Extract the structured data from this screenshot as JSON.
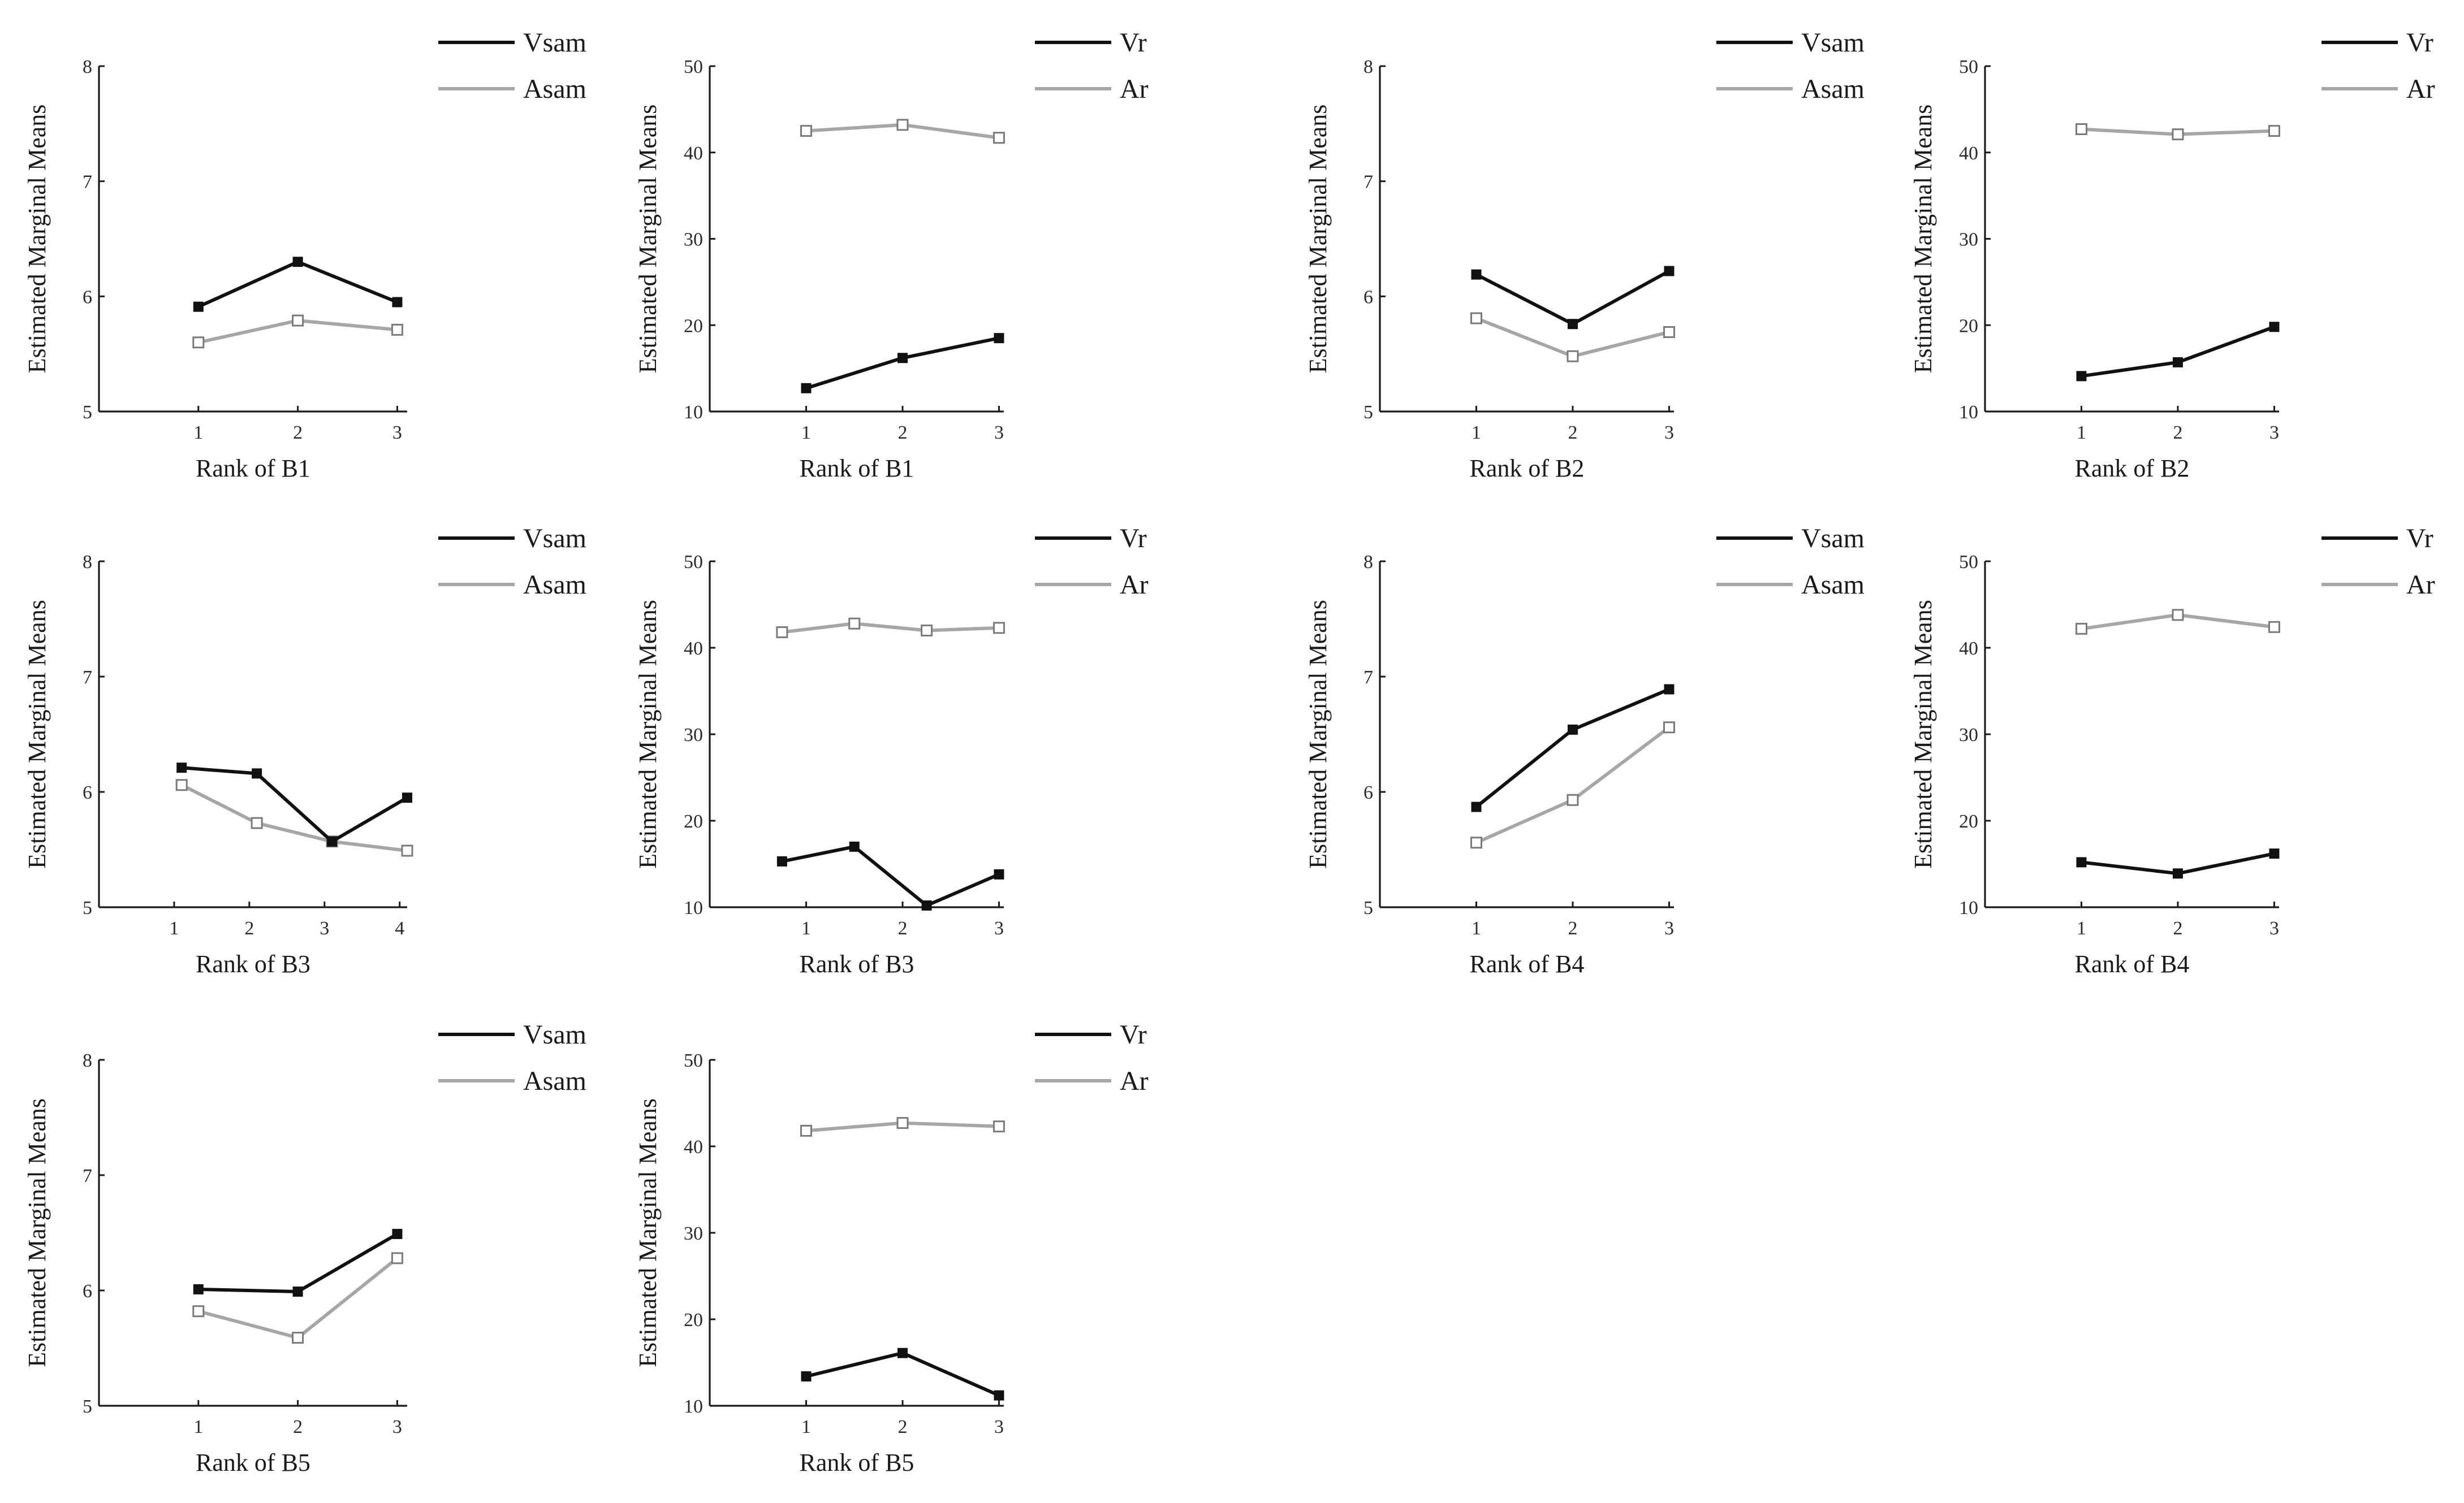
{
  "chart_data": [
    {
      "type": "line",
      "xlabel": "Rank of B1",
      "ylabel": "Estimated Marginal Means",
      "ylim": [
        5,
        8
      ],
      "yticks": [
        5,
        6,
        7,
        8
      ],
      "xticks": [
        1,
        2,
        3
      ],
      "series": [
        {
          "name": "Vsam",
          "x": [
            1,
            2,
            3
          ],
          "values": [
            5.91,
            6.3,
            5.95
          ],
          "color": "#111111",
          "marker": "filled-square"
        },
        {
          "name": "Asam",
          "x": [
            1,
            2,
            3
          ],
          "values": [
            5.6,
            5.79,
            5.71
          ],
          "color": "#a6a6a6",
          "marker": "open-square"
        }
      ],
      "legend": "top-right"
    },
    {
      "type": "line",
      "xlabel": "Rank of B1",
      "ylabel": "Estimated Marginal Means",
      "ylim": [
        10,
        50
      ],
      "yticks": [
        10,
        20,
        30,
        40,
        50
      ],
      "xticks": [
        1,
        2,
        3
      ],
      "series": [
        {
          "name": "Vr",
          "x": [
            1,
            2,
            3
          ],
          "values": [
            12.7,
            16.2,
            18.5
          ],
          "color": "#111111",
          "marker": "filled-square"
        },
        {
          "name": "Ar",
          "x": [
            1,
            2,
            3
          ],
          "values": [
            42.5,
            43.2,
            41.7
          ],
          "color": "#a6a6a6",
          "marker": "open-square"
        }
      ],
      "legend": "top-right"
    },
    {
      "type": "line",
      "xlabel": "Rank of B2",
      "ylabel": "Estimated Marginal Means",
      "ylim": [
        5,
        8
      ],
      "yticks": [
        5,
        6,
        7,
        8
      ],
      "xticks": [
        1,
        2,
        3
      ],
      "series": [
        {
          "name": "Vsam",
          "x": [
            1,
            2,
            3
          ],
          "values": [
            6.19,
            5.76,
            6.22
          ],
          "color": "#111111",
          "marker": "filled-square"
        },
        {
          "name": "Asam",
          "x": [
            1,
            2,
            3
          ],
          "values": [
            5.81,
            5.48,
            5.69
          ],
          "color": "#a6a6a6",
          "marker": "open-square"
        }
      ],
      "legend": "top-right"
    },
    {
      "type": "line",
      "xlabel": "Rank of B2",
      "ylabel": "Estimated Marginal Means",
      "ylim": [
        10,
        50
      ],
      "yticks": [
        10,
        20,
        30,
        40,
        50
      ],
      "xticks": [
        1,
        2,
        3
      ],
      "series": [
        {
          "name": "Vr",
          "x": [
            1,
            2,
            3
          ],
          "values": [
            14.1,
            15.7,
            19.8
          ],
          "color": "#111111",
          "marker": "filled-square"
        },
        {
          "name": "Ar",
          "x": [
            1,
            2,
            3
          ],
          "values": [
            42.7,
            42.1,
            42.5
          ],
          "color": "#a6a6a6",
          "marker": "open-square"
        }
      ],
      "legend": "top-right"
    },
    {
      "type": "line",
      "xlabel": "Rank of B3",
      "ylabel": "Estimated Marginal Means",
      "ylim": [
        5,
        8
      ],
      "yticks": [
        5,
        6,
        7,
        8
      ],
      "xticks": [
        1,
        2,
        3,
        4
      ],
      "series": [
        {
          "name": "Vsam",
          "x": [
            1.1,
            2.1,
            3.1,
            4.1
          ],
          "values": [
            6.21,
            6.16,
            5.57,
            5.95
          ],
          "color": "#111111",
          "marker": "filled-square"
        },
        {
          "name": "Asam",
          "x": [
            1.1,
            2.1,
            3.1,
            4.1
          ],
          "values": [
            6.06,
            5.73,
            5.57,
            5.49
          ],
          "color": "#a6a6a6",
          "marker": "open-square"
        }
      ],
      "legend": "top-right"
    },
    {
      "type": "line",
      "xlabel": "Rank of B3",
      "ylabel": "Estimated Marginal Means",
      "ylim": [
        10,
        50
      ],
      "yticks": [
        10,
        20,
        30,
        40,
        50
      ],
      "xticks": [
        1,
        2,
        3
      ],
      "series": [
        {
          "name": "Vr",
          "x": [
            0.75,
            1.5,
            2.25,
            3.0
          ],
          "values": [
            15.3,
            17.0,
            10.2,
            13.8
          ],
          "color": "#111111",
          "marker": "filled-square"
        },
        {
          "name": "Ar",
          "x": [
            0.75,
            1.5,
            2.25,
            3.0
          ],
          "values": [
            41.8,
            42.8,
            42.0,
            42.3
          ],
          "color": "#a6a6a6",
          "marker": "open-square"
        }
      ],
      "legend": "top-right"
    },
    {
      "type": "line",
      "xlabel": "Rank of B4",
      "ylabel": "Estimated Marginal Means",
      "ylim": [
        5,
        8
      ],
      "yticks": [
        5,
        6,
        7,
        8
      ],
      "xticks": [
        1,
        2,
        3
      ],
      "series": [
        {
          "name": "Vsam",
          "x": [
            1,
            2,
            3
          ],
          "values": [
            5.87,
            6.54,
            6.89
          ],
          "color": "#111111",
          "marker": "filled-square"
        },
        {
          "name": "Asam",
          "x": [
            1,
            2,
            3
          ],
          "values": [
            5.56,
            5.93,
            6.56
          ],
          "color": "#a6a6a6",
          "marker": "open-square"
        }
      ],
      "legend": "top-right"
    },
    {
      "type": "line",
      "xlabel": "Rank of B4",
      "ylabel": "Estimated Marginal Means",
      "ylim": [
        10,
        50
      ],
      "yticks": [
        10,
        20,
        30,
        40,
        50
      ],
      "xticks": [
        1,
        2,
        3
      ],
      "series": [
        {
          "name": "Vr",
          "x": [
            1,
            2,
            3
          ],
          "values": [
            15.2,
            13.9,
            16.2
          ],
          "color": "#111111",
          "marker": "filled-square"
        },
        {
          "name": "Ar",
          "x": [
            1,
            2,
            3
          ],
          "values": [
            42.2,
            43.8,
            42.4
          ],
          "color": "#a6a6a6",
          "marker": "open-square"
        }
      ],
      "legend": "top-right"
    },
    {
      "type": "line",
      "xlabel": "Rank of B5",
      "ylabel": "Estimated Marginal Means",
      "ylim": [
        5,
        8
      ],
      "yticks": [
        5,
        6,
        7,
        8
      ],
      "xticks": [
        1,
        2,
        3
      ],
      "series": [
        {
          "name": "Vsam",
          "x": [
            1,
            2,
            3
          ],
          "values": [
            6.01,
            5.99,
            6.49
          ],
          "color": "#111111",
          "marker": "filled-square"
        },
        {
          "name": "Asam",
          "x": [
            1,
            2,
            3
          ],
          "values": [
            5.82,
            5.59,
            6.28
          ],
          "color": "#a6a6a6",
          "marker": "open-square"
        }
      ],
      "legend": "top-right"
    },
    {
      "type": "line",
      "xlabel": "Rank of B5",
      "ylabel": "Estimated Marginal Means",
      "ylim": [
        10,
        50
      ],
      "yticks": [
        10,
        20,
        30,
        40,
        50
      ],
      "xticks": [
        1,
        2,
        3
      ],
      "series": [
        {
          "name": "Vr",
          "x": [
            1,
            2,
            3
          ],
          "values": [
            13.4,
            16.1,
            11.2
          ],
          "color": "#111111",
          "marker": "filled-square"
        },
        {
          "name": "Ar",
          "x": [
            1,
            2,
            3
          ],
          "values": [
            41.8,
            42.7,
            42.3
          ],
          "color": "#a6a6a6",
          "marker": "open-square"
        }
      ],
      "legend": "top-right"
    }
  ]
}
